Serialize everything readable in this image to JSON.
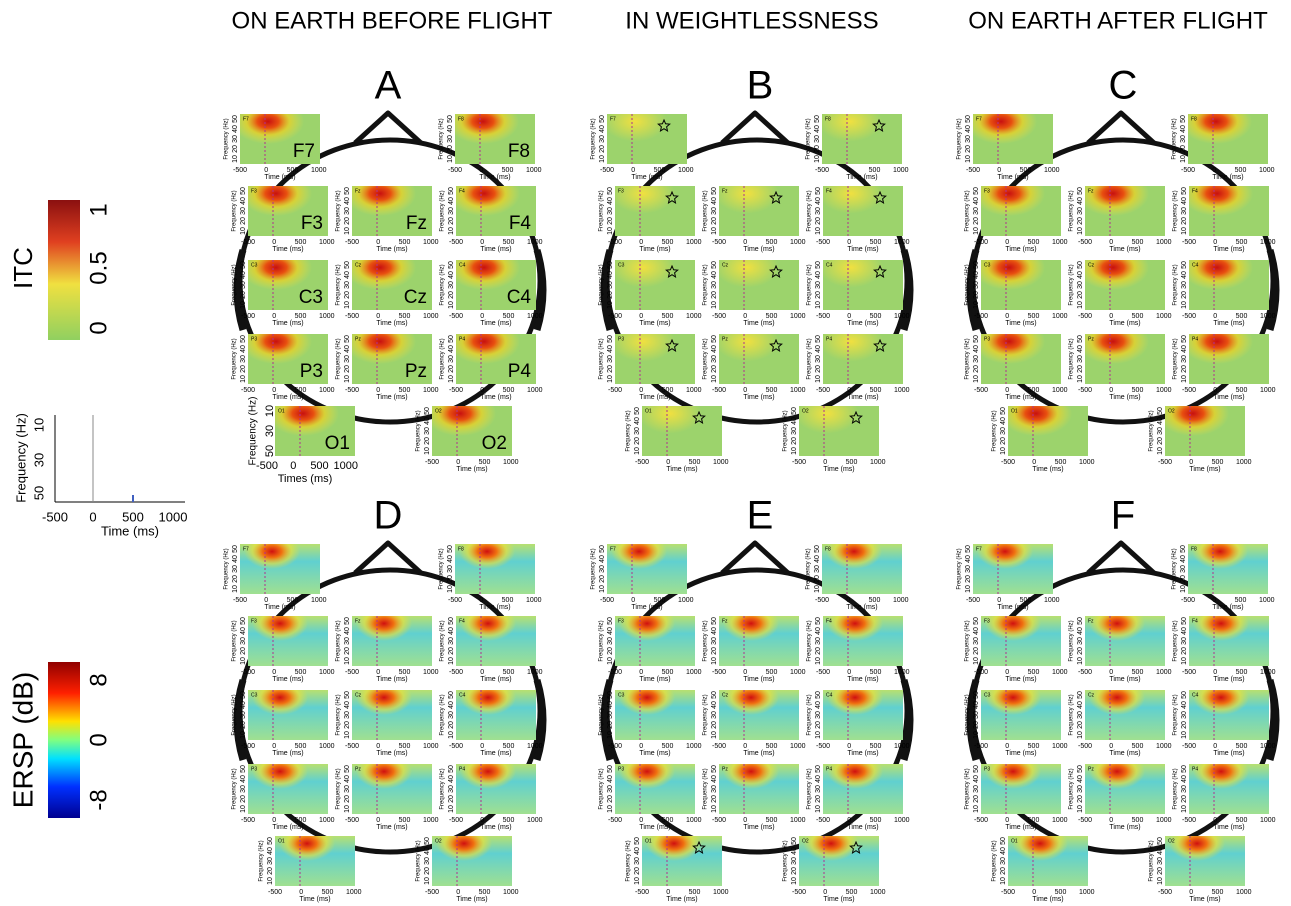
{
  "columns": [
    "ON EARTH BEFORE FLIGHT",
    "IN WEIGHTLESSNESS",
    "ON EARTH AFTER FLIGHT"
  ],
  "panels": [
    "A",
    "B",
    "C",
    "D",
    "E",
    "F"
  ],
  "legend": {
    "itc": {
      "label": "ITC",
      "ticks": [
        "1",
        "0.5",
        "0"
      ]
    },
    "ersp": {
      "label": "ERSP (dB)",
      "ticks": [
        "8",
        "0",
        "-8"
      ]
    },
    "example": {
      "ylabel": "Frequency (Hz)",
      "yticks": [
        "10",
        "30",
        "50"
      ],
      "xticks": [
        "-500",
        "0",
        "500",
        "1000"
      ],
      "xlabel": "Time (ms)"
    }
  },
  "electrodes": [
    "F7",
    "F8",
    "F3",
    "Fz",
    "F4",
    "C3",
    "Cz",
    "C4",
    "P3",
    "Pz",
    "P4",
    "O1",
    "O2"
  ],
  "subplot": {
    "ylabel": "Frequency (Hz)",
    "yticks": [
      "50",
      "40",
      "30",
      "20",
      "10"
    ],
    "xticks": [
      "-500",
      "0",
      "500",
      "1000"
    ],
    "xlabel": "Time (ms)"
  },
  "panel_a_o1": {
    "ylabel": "Frequency (Hz)",
    "yticks": [
      "10",
      "30",
      "50"
    ],
    "xticks": [
      "-500",
      "0",
      "500",
      "1000"
    ],
    "xlabel": "Times (ms)"
  }
}
